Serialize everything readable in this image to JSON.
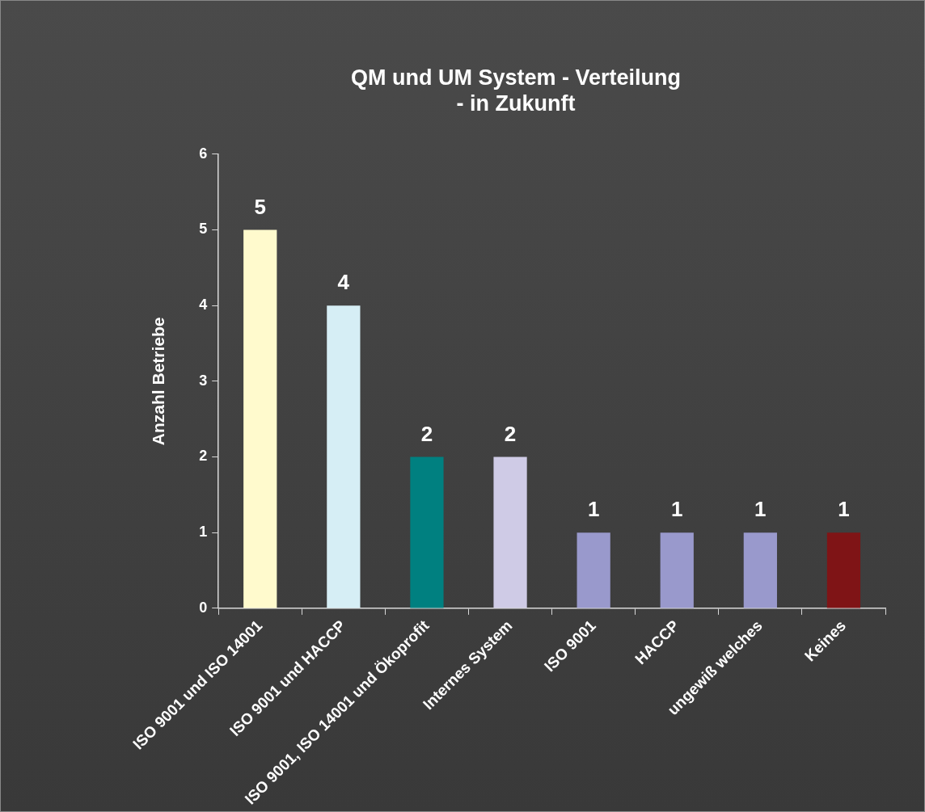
{
  "chart_data": {
    "type": "bar",
    "title": "QM und UM System - Verteilung\n- in Zukunft",
    "ylabel": "Anzahl Betriebe",
    "categories": [
      "ISO 9001 und ISO 14001",
      "ISO 9001 und HACCP",
      "ISO 9001, ISO 14001 und Ökoprofit",
      "Internes System",
      "ISO 9001",
      "HACCP",
      "ungewiß welches",
      "Keines"
    ],
    "values": [
      5,
      4,
      2,
      2,
      1,
      1,
      1,
      1
    ],
    "colors": [
      "#fffacd",
      "#d6eef5",
      "#008080",
      "#cfcbe6",
      "#9999cc",
      "#9999cc",
      "#9999cc",
      "#7f1416"
    ],
    "ylim": [
      0,
      6
    ],
    "yticks": [
      0,
      1,
      2,
      3,
      4,
      5,
      6
    ],
    "grid": false,
    "legend": false,
    "data_labels": true
  }
}
